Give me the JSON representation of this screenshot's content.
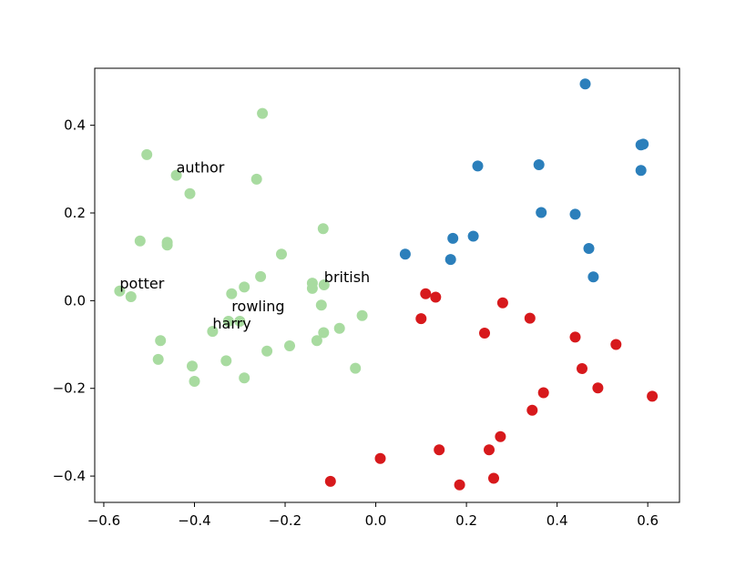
{
  "chart_data": {
    "type": "scatter",
    "title": "",
    "xlabel": "",
    "ylabel": "",
    "xlim": [
      -0.62,
      0.67
    ],
    "ylim": [
      -0.46,
      0.53
    ],
    "grid": false,
    "xticks": [
      -0.6,
      -0.4,
      -0.2,
      0.0,
      0.2,
      0.4,
      0.6
    ],
    "yticks": [
      -0.4,
      -0.2,
      0.0,
      0.2,
      0.4
    ],
    "xtick_labels": [
      "−0.6",
      "−0.4",
      "−0.2",
      "0.0",
      "0.2",
      "0.4",
      "0.6"
    ],
    "ytick_labels": [
      "−0.4",
      "−0.2",
      "0.0",
      "0.2",
      "0.4"
    ],
    "series": [
      {
        "color": "#a8dba0",
        "points": [
          [
            -0.25,
            0.427
          ],
          [
            -0.505,
            0.333
          ],
          [
            -0.44,
            0.286
          ],
          [
            -0.263,
            0.277
          ],
          [
            -0.41,
            0.244
          ],
          [
            -0.116,
            0.164
          ],
          [
            -0.52,
            0.136
          ],
          [
            -0.46,
            0.133
          ],
          [
            -0.46,
            0.127
          ],
          [
            -0.208,
            0.106
          ],
          [
            -0.254,
            0.055
          ],
          [
            -0.14,
            0.04
          ],
          [
            -0.114,
            0.036
          ],
          [
            -0.29,
            0.031
          ],
          [
            -0.14,
            0.028
          ],
          [
            -0.565,
            0.022
          ],
          [
            -0.54,
            0.009
          ],
          [
            -0.318,
            0.016
          ],
          [
            -0.12,
            -0.01
          ],
          [
            -0.03,
            -0.034
          ],
          [
            -0.325,
            -0.047
          ],
          [
            -0.3,
            -0.047
          ],
          [
            -0.08,
            -0.063
          ],
          [
            -0.36,
            -0.07
          ],
          [
            -0.115,
            -0.073
          ],
          [
            -0.475,
            -0.091
          ],
          [
            -0.13,
            -0.091
          ],
          [
            -0.19,
            -0.103
          ],
          [
            -0.24,
            -0.115
          ],
          [
            -0.48,
            -0.134
          ],
          [
            -0.33,
            -0.137
          ],
          [
            -0.405,
            -0.149
          ],
          [
            -0.045,
            -0.154
          ],
          [
            -0.29,
            -0.176
          ],
          [
            -0.4,
            -0.184
          ]
        ]
      },
      {
        "color": "#2b7fbb",
        "points": [
          [
            0.462,
            0.494
          ],
          [
            0.59,
            0.357
          ],
          [
            0.585,
            0.355
          ],
          [
            0.225,
            0.307
          ],
          [
            0.36,
            0.31
          ],
          [
            0.585,
            0.297
          ],
          [
            0.365,
            0.201
          ],
          [
            0.44,
            0.197
          ],
          [
            0.215,
            0.147
          ],
          [
            0.17,
            0.142
          ],
          [
            0.47,
            0.119
          ],
          [
            0.065,
            0.106
          ],
          [
            0.165,
            0.094
          ],
          [
            0.48,
            0.054
          ]
        ]
      },
      {
        "color": "#d7191c",
        "points": [
          [
            0.11,
            0.016
          ],
          [
            0.132,
            0.008
          ],
          [
            0.28,
            -0.005
          ],
          [
            0.1,
            -0.041
          ],
          [
            0.34,
            -0.04
          ],
          [
            0.24,
            -0.074
          ],
          [
            0.44,
            -0.083
          ],
          [
            0.53,
            -0.1
          ],
          [
            0.455,
            -0.155
          ],
          [
            0.49,
            -0.199
          ],
          [
            0.37,
            -0.21
          ],
          [
            0.61,
            -0.218
          ],
          [
            0.345,
            -0.25
          ],
          [
            0.275,
            -0.31
          ],
          [
            0.14,
            -0.34
          ],
          [
            0.25,
            -0.34
          ],
          [
            0.01,
            -0.36
          ],
          [
            -0.1,
            -0.412
          ],
          [
            0.26,
            -0.405
          ],
          [
            0.185,
            -0.42
          ]
        ]
      }
    ],
    "annotations": [
      {
        "text": "author",
        "x": -0.44,
        "y": 0.286
      },
      {
        "text": "potter",
        "x": -0.565,
        "y": 0.022
      },
      {
        "text": "british",
        "x": -0.114,
        "y": 0.036
      },
      {
        "text": "rowling",
        "x": -0.318,
        "y": -0.03
      },
      {
        "text": "harry",
        "x": -0.36,
        "y": -0.07
      }
    ]
  }
}
